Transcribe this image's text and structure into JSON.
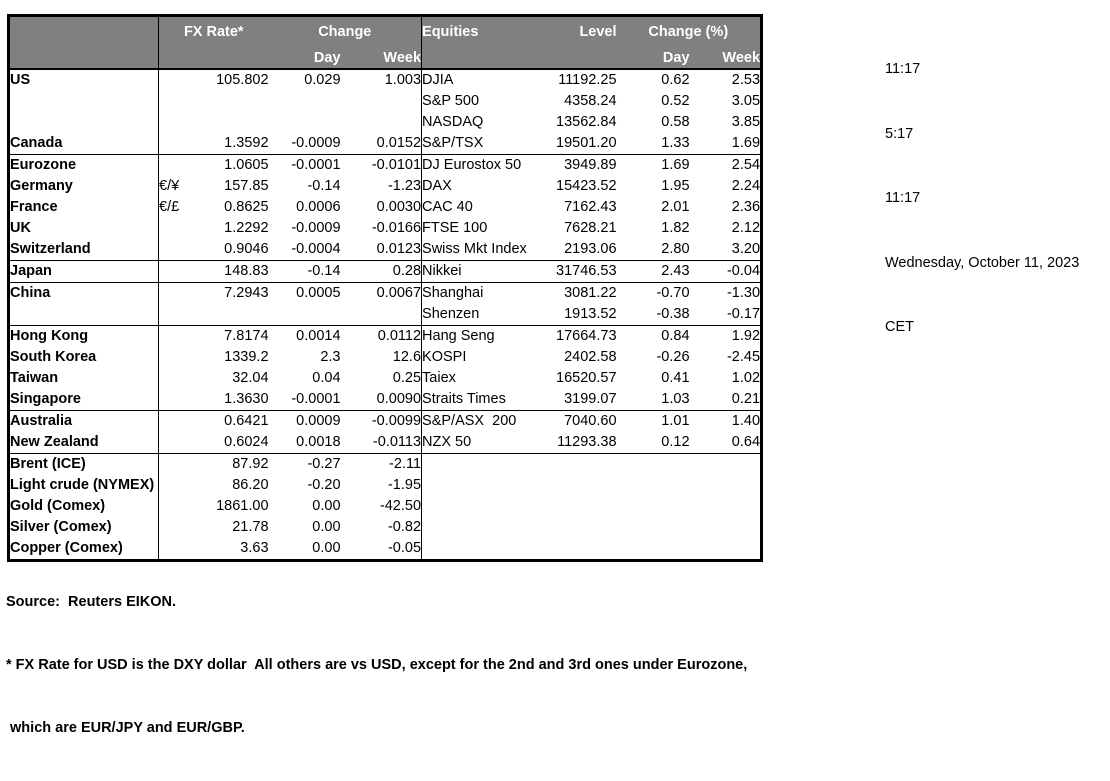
{
  "colors": {
    "header_bg": "#808080",
    "header_text": "#ffffff",
    "border": "#000000"
  },
  "header": {
    "fx_rate": "FX Rate*",
    "change": "Change",
    "day": "Day",
    "week": "Week",
    "equities": "Equities",
    "level": "Level",
    "change_pct": "Change (%)"
  },
  "rows": [
    {
      "country": "US",
      "bold": true,
      "indent": false,
      "pair": "",
      "fx": "105.802",
      "day": "0.029",
      "week": "1.003",
      "equity": "DJIA",
      "level": "11192.25",
      "eday": "0.62",
      "eweek": "2.53",
      "sec": false
    },
    {
      "country": "",
      "bold": false,
      "indent": false,
      "pair": "",
      "fx": "",
      "day": "",
      "week": "",
      "equity": "S&P 500",
      "level": "4358.24",
      "eday": "0.52",
      "eweek": "3.05",
      "sec": false
    },
    {
      "country": "",
      "bold": false,
      "indent": false,
      "pair": "",
      "fx": "",
      "day": "",
      "week": "",
      "equity": "NASDAQ",
      "level": "13562.84",
      "eday": "0.58",
      "eweek": "3.85",
      "sec": false
    },
    {
      "country": "Canada",
      "bold": true,
      "indent": false,
      "pair": "",
      "fx": "1.3592",
      "day": "-0.0009",
      "week": "0.0152",
      "equity": "S&P/TSX",
      "level": "19501.20",
      "eday": "1.33",
      "eweek": "1.69",
      "sec": false
    },
    {
      "country": "Eurozone",
      "bold": true,
      "indent": false,
      "pair": "",
      "fx": "1.0605",
      "day": "-0.0001",
      "week": "-0.0101",
      "equity": "DJ Eurostox 50",
      "level": "3949.89",
      "eday": "1.69",
      "eweek": "2.54",
      "sec": true
    },
    {
      "country": "Germany",
      "bold": true,
      "indent": true,
      "pair": "€/¥",
      "fx": "157.85",
      "day": "-0.14",
      "week": "-1.23",
      "equity": "DAX",
      "level": "15423.52",
      "eday": "1.95",
      "eweek": "2.24",
      "sec": false
    },
    {
      "country": "France",
      "bold": true,
      "indent": true,
      "pair": "€/£",
      "fx": "0.8625",
      "day": "0.0006",
      "week": "0.0030",
      "equity": "CAC 40",
      "level": "7162.43",
      "eday": "2.01",
      "eweek": "2.36",
      "sec": false
    },
    {
      "country": "UK",
      "bold": true,
      "indent": false,
      "pair": "",
      "fx": "1.2292",
      "day": "-0.0009",
      "week": "-0.0166",
      "equity": "FTSE 100",
      "level": "7628.21",
      "eday": "1.82",
      "eweek": "2.12",
      "sec": false
    },
    {
      "country": "Switzerland",
      "bold": true,
      "indent": false,
      "pair": "",
      "fx": "0.9046",
      "day": "-0.0004",
      "week": "0.0123",
      "equity": "Swiss Mkt Index",
      "level": "2193.06",
      "eday": "2.80",
      "eweek": "3.20",
      "sec": false
    },
    {
      "country": "Japan",
      "bold": true,
      "indent": false,
      "pair": "",
      "fx": "148.83",
      "day": "-0.14",
      "week": "0.28",
      "equity": "Nikkei",
      "level": "31746.53",
      "eday": "2.43",
      "eweek": "-0.04",
      "sec": true
    },
    {
      "country": "China",
      "bold": true,
      "indent": false,
      "pair": "",
      "fx": "7.2943",
      "day": "0.0005",
      "week": "0.0067",
      "equity": "Shanghai",
      "level": "3081.22",
      "eday": "-0.70",
      "eweek": "-1.30",
      "sec": true
    },
    {
      "country": "",
      "bold": false,
      "indent": false,
      "pair": "",
      "fx": "",
      "day": "",
      "week": "",
      "equity": "Shenzen",
      "level": "1913.52",
      "eday": "-0.38",
      "eweek": "-0.17",
      "sec": false
    },
    {
      "country": "Hong Kong",
      "bold": true,
      "indent": false,
      "pair": "",
      "fx": "7.8174",
      "day": "0.0014",
      "week": "0.0112",
      "equity": "Hang Seng",
      "level": "17664.73",
      "eday": "0.84",
      "eweek": "1.92",
      "sec": true
    },
    {
      "country": "South Korea",
      "bold": true,
      "indent": false,
      "pair": "",
      "fx": "1339.2",
      "day": "2.3",
      "week": "12.6",
      "equity": "KOSPI",
      "level": "2402.58",
      "eday": "-0.26",
      "eweek": "-2.45",
      "sec": false
    },
    {
      "country": "Taiwan",
      "bold": true,
      "indent": false,
      "pair": "",
      "fx": "32.04",
      "day": "0.04",
      "week": "0.25",
      "equity": "Taiex",
      "level": "16520.57",
      "eday": "0.41",
      "eweek": "1.02",
      "sec": false
    },
    {
      "country": "Singapore",
      "bold": true,
      "indent": false,
      "pair": "",
      "fx": "1.3630",
      "day": "-0.0001",
      "week": "0.0090",
      "equity": "Straits Times",
      "level": "3199.07",
      "eday": "1.03",
      "eweek": "0.21",
      "sec": false
    },
    {
      "country": "Australia",
      "bold": true,
      "indent": false,
      "pair": "",
      "fx": "0.6421",
      "day": "0.0009",
      "week": "-0.0099",
      "equity": "S&P/ASX  200",
      "level": "7040.60",
      "eday": "1.01",
      "eweek": "1.40",
      "sec": true
    },
    {
      "country": "New Zealand",
      "bold": true,
      "indent": false,
      "pair": "",
      "fx": "0.6024",
      "day": "0.0018",
      "week": "-0.0113",
      "equity": "NZX 50",
      "level": "11293.38",
      "eday": "0.12",
      "eweek": "0.64",
      "sec": false
    },
    {
      "country": "Brent (ICE)",
      "bold": true,
      "indent": false,
      "pair": "",
      "fx": "87.92",
      "day": "-0.27",
      "week": "-2.11",
      "equity": "",
      "level": "",
      "eday": "",
      "eweek": "",
      "sec": true
    },
    {
      "country": "Light crude (NYMEX)",
      "bold": true,
      "indent": false,
      "pair": "",
      "fx": "86.20",
      "day": "-0.20",
      "week": "-1.95",
      "equity": "",
      "level": "",
      "eday": "",
      "eweek": "",
      "sec": false
    },
    {
      "country": "Gold (Comex)",
      "bold": true,
      "indent": false,
      "pair": "",
      "fx": "1861.00",
      "day": "0.00",
      "week": "-42.50",
      "equity": "",
      "level": "",
      "eday": "",
      "eweek": "",
      "sec": false
    },
    {
      "country": "Silver (Comex)",
      "bold": true,
      "indent": false,
      "pair": "",
      "fx": "21.78",
      "day": "0.00",
      "week": "-0.82",
      "equity": "",
      "level": "",
      "eday": "",
      "eweek": "",
      "sec": false
    },
    {
      "country": "Copper (Comex)",
      "bold": true,
      "indent": false,
      "pair": "",
      "fx": "3.63",
      "day": "0.00",
      "week": "-0.05",
      "equity": "",
      "level": "",
      "eday": "",
      "eweek": "",
      "sec": false
    }
  ],
  "sidebar": {
    "lines": [
      "11:17",
      "5:17",
      "11:17",
      "Wednesday, October 11, 2023",
      "CET"
    ]
  },
  "footer": {
    "source": "Source:  Reuters EIKON.",
    "note1": "* FX Rate for USD is the DXY dollar  All others are vs USD, except for the 2nd and 3rd ones under Eurozone,",
    "note2": " which are EUR/JPY and EUR/GBP."
  }
}
